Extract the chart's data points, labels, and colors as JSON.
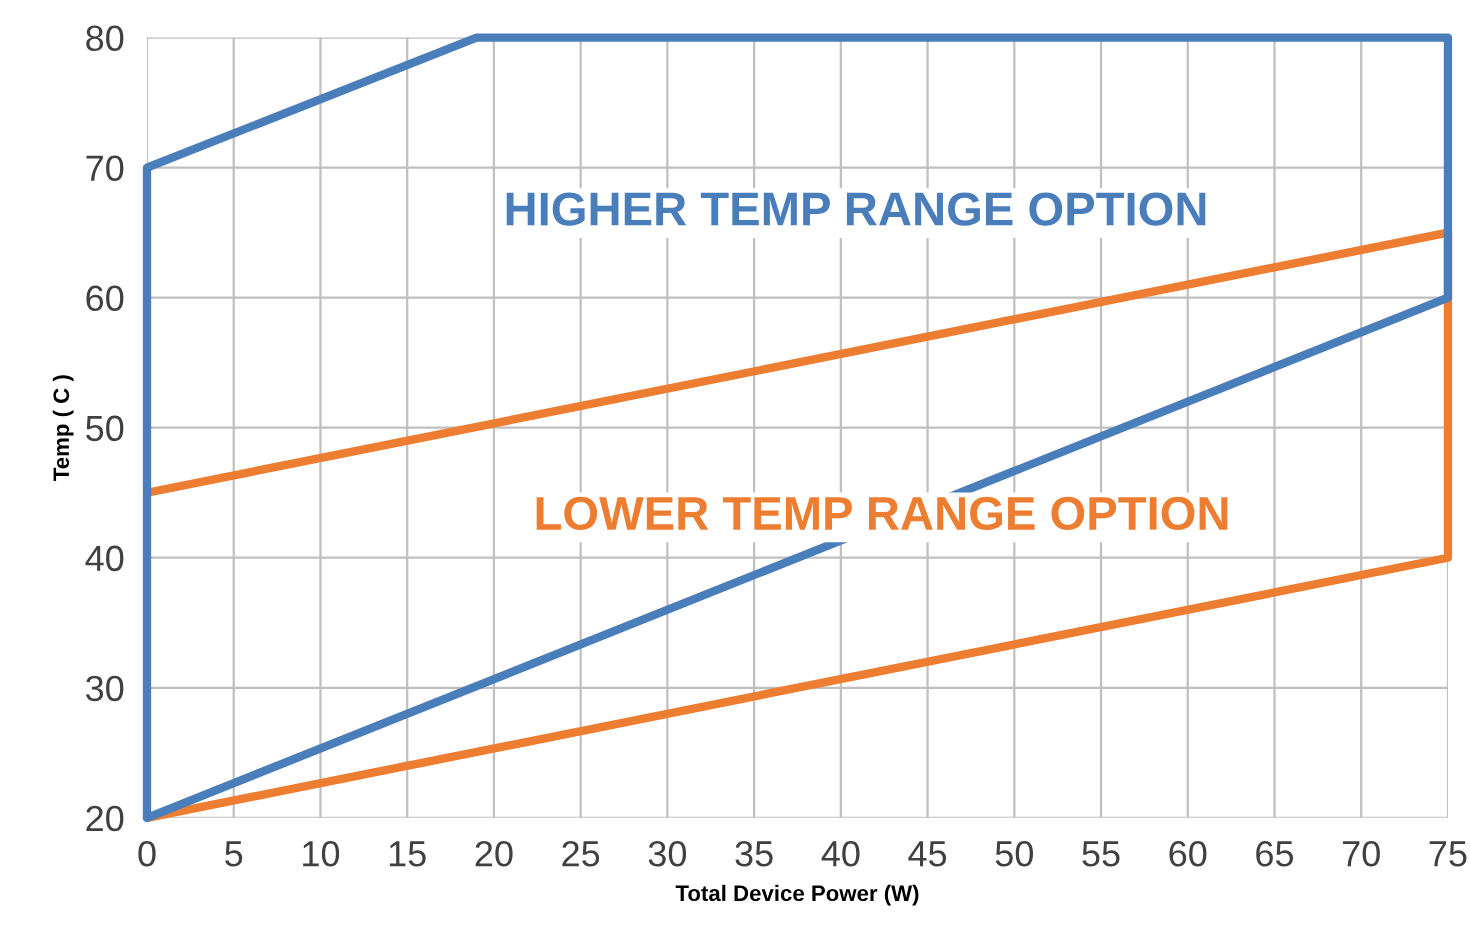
{
  "chart_data": {
    "type": "line",
    "xlabel": "Total Device Power (W)",
    "ylabel": "Temp ( C )",
    "series": [
      {
        "color": "#ed7d31",
        "x": [
          0,
          75,
          75
        ],
        "values": [
          20,
          40,
          65
        ]
      },
      {
        "color": "#ed7d31",
        "x": [
          0,
          75
        ],
        "values": [
          45,
          65
        ]
      },
      {
        "color": "#4a7ebb",
        "x": [
          0,
          0,
          19,
          75,
          75
        ],
        "values": [
          20,
          70,
          80,
          80,
          60
        ]
      },
      {
        "color": "#4a7ebb",
        "x": [
          0,
          75
        ],
        "values": [
          20,
          60
        ]
      }
    ],
    "annotations": [
      "LOWER TEMP RANGE OPTION",
      "HIGHER TEMP RANGE OPTION"
    ],
    "xlim": [
      0,
      75
    ],
    "ylim": [
      20,
      80
    ],
    "xticks": [
      0,
      5,
      10,
      15,
      20,
      25,
      30,
      35,
      40,
      45,
      50,
      55,
      60,
      65,
      70,
      75
    ],
    "yticks": [
      20,
      30,
      40,
      50,
      60,
      70,
      80
    ],
    "grid": true,
    "marker": "none",
    "line_style": "solid"
  }
}
